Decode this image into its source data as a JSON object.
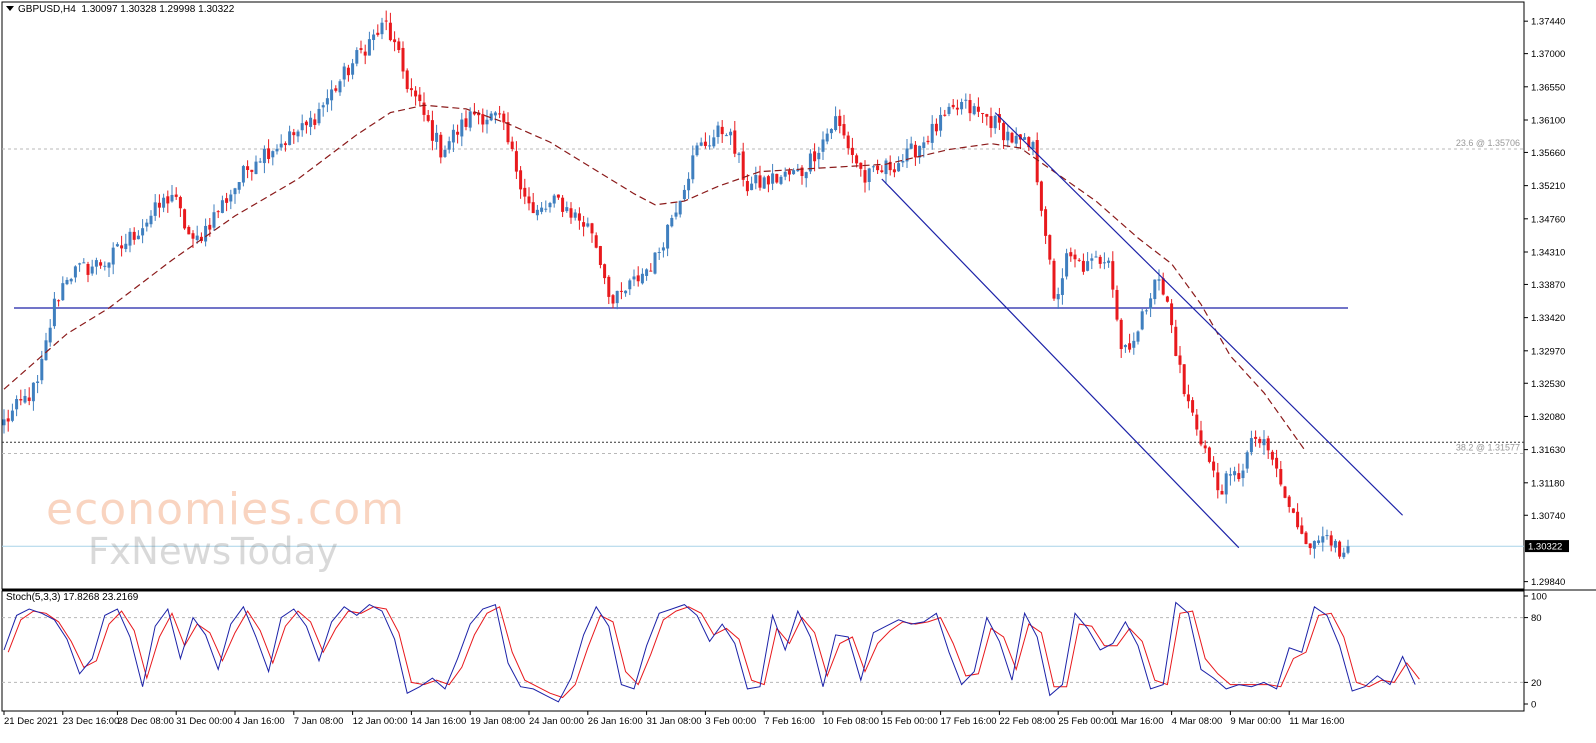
{
  "header": {
    "symbol": "GBPUSD,H4",
    "ohlc": "1.30097 1.30328 1.29998 1.30322"
  },
  "watermark": {
    "line1": "economies.com",
    "line2": "FxNewsToday"
  },
  "colors": {
    "bull": "#3f7fbf",
    "bear": "#e8191d",
    "ma": "#8b1a1a",
    "trend": "#1c22a8",
    "stoch_main": "#1c22a8",
    "stoch_signal": "#e8191d",
    "grid": "#b8b8b8"
  },
  "chart_data": [
    {
      "type": "candlestick",
      "symbol": "GBPUSD",
      "timeframe": "H4",
      "y_ticks": [
        "1.37440",
        "1.37000",
        "1.36550",
        "1.36100",
        "1.35660",
        "1.35210",
        "1.34760",
        "1.34310",
        "1.33870",
        "1.33420",
        "1.32970",
        "1.32530",
        "1.32080",
        "1.31630",
        "1.31180",
        "1.30740",
        "1.29840"
      ],
      "ylim": [
        1.2974,
        1.377
      ],
      "current_price_label": "1.30322",
      "current_price": 1.30322,
      "fib_levels": [
        {
          "label": "23.6 @ 1.35706",
          "value": 1.35706
        },
        {
          "label": "38.2 @ 1.31577",
          "value": 1.31577
        }
      ],
      "horizontal_lines": [
        1.3355,
        1.3173,
        1.3032
      ],
      "x_labels": [
        {
          "text": "21 Dec 2021",
          "idx": 0
        },
        {
          "text": "23 Dec 16:00",
          "idx": 14
        },
        {
          "text": "28 Dec 08:00",
          "idx": 27
        },
        {
          "text": "31 Dec 00:00",
          "idx": 41
        },
        {
          "text": "4 Jan 16:00",
          "idx": 55
        },
        {
          "text": "7 Jan 08:00",
          "idx": 69
        },
        {
          "text": "12 Jan 00:00",
          "idx": 83
        },
        {
          "text": "14 Jan 16:00",
          "idx": 97
        },
        {
          "text": "19 Jan 08:00",
          "idx": 111
        },
        {
          "text": "24 Jan 00:00",
          "idx": 125
        },
        {
          "text": "26 Jan 16:00",
          "idx": 139
        },
        {
          "text": "31 Jan 08:00",
          "idx": 153
        },
        {
          "text": "3 Feb 00:00",
          "idx": 167
        },
        {
          "text": "7 Feb 16:00",
          "idx": 181
        },
        {
          "text": "10 Feb 08:00",
          "idx": 195
        },
        {
          "text": "15 Feb 00:00",
          "idx": 209
        },
        {
          "text": "17 Feb 16:00",
          "idx": 223
        },
        {
          "text": "22 Feb 08:00",
          "idx": 237
        },
        {
          "text": "25 Feb 00:00",
          "idx": 251
        },
        {
          "text": "1 Mar 16:00",
          "idx": 264
        },
        {
          "text": "4 Mar 08:00",
          "idx": 278
        },
        {
          "text": "9 Mar 00:00",
          "idx": 292
        },
        {
          "text": "11 Mar 16:00",
          "idx": 306
        }
      ],
      "key_closes": [
        [
          0,
          1.32
        ],
        [
          8,
          1.325
        ],
        [
          12,
          1.336
        ],
        [
          15,
          1.34
        ],
        [
          25,
          1.342
        ],
        [
          40,
          1.351
        ],
        [
          45,
          1.344
        ],
        [
          60,
          1.356
        ],
        [
          72,
          1.36
        ],
        [
          86,
          1.371
        ],
        [
          91,
          1.374
        ],
        [
          96,
          1.366
        ],
        [
          104,
          1.357
        ],
        [
          112,
          1.362
        ],
        [
          118,
          1.361
        ],
        [
          126,
          1.348
        ],
        [
          132,
          1.35
        ],
        [
          140,
          1.346
        ],
        [
          145,
          1.336
        ],
        [
          155,
          1.342
        ],
        [
          165,
          1.357
        ],
        [
          172,
          1.36
        ],
        [
          177,
          1.352
        ],
        [
          190,
          1.354
        ],
        [
          198,
          1.361
        ],
        [
          205,
          1.353
        ],
        [
          215,
          1.356
        ],
        [
          222,
          1.36
        ],
        [
          228,
          1.363
        ],
        [
          235,
          1.361
        ],
        [
          241,
          1.358
        ],
        [
          245,
          1.357
        ],
        [
          248,
          1.346
        ],
        [
          250,
          1.336
        ],
        [
          253,
          1.342
        ],
        [
          258,
          1.341
        ],
        [
          263,
          1.343
        ],
        [
          266,
          1.33
        ],
        [
          270,
          1.332
        ],
        [
          274,
          1.34
        ],
        [
          277,
          1.336
        ],
        [
          281,
          1.324
        ],
        [
          285,
          1.318
        ],
        [
          289,
          1.311
        ],
        [
          294,
          1.313
        ],
        [
          298,
          1.318
        ],
        [
          302,
          1.315
        ],
        [
          306,
          1.308
        ],
        [
          312,
          1.303
        ],
        [
          315,
          1.306
        ],
        [
          318,
          1.301
        ],
        [
          320,
          1.3032
        ]
      ],
      "moving_average": {
        "style": "dashed",
        "points": [
          [
            0,
            1.3245
          ],
          [
            15,
            1.332
          ],
          [
            25,
            1.3355
          ],
          [
            40,
            1.342
          ],
          [
            55,
            1.348
          ],
          [
            70,
            1.353
          ],
          [
            84,
            1.359
          ],
          [
            92,
            1.362
          ],
          [
            100,
            1.363
          ],
          [
            110,
            1.3625
          ],
          [
            120,
            1.3605
          ],
          [
            130,
            1.358
          ],
          [
            140,
            1.3545
          ],
          [
            150,
            1.351
          ],
          [
            155,
            1.3495
          ],
          [
            162,
            1.35
          ],
          [
            170,
            1.352
          ],
          [
            180,
            1.354
          ],
          [
            195,
            1.3545
          ],
          [
            210,
            1.355
          ],
          [
            225,
            1.357
          ],
          [
            235,
            1.3578
          ],
          [
            242,
            1.3572
          ],
          [
            250,
            1.354
          ],
          [
            260,
            1.35
          ],
          [
            270,
            1.345
          ],
          [
            278,
            1.3415
          ],
          [
            285,
            1.336
          ],
          [
            292,
            1.329
          ],
          [
            300,
            1.324
          ],
          [
            310,
            1.316
          ]
        ]
      },
      "trend_channel": [
        {
          "from": [
            209,
            1.353
          ],
          "to": [
            294,
            1.303
          ]
        },
        {
          "from": [
            236,
            1.362
          ],
          "to": [
            333,
            1.3074
          ]
        }
      ]
    },
    {
      "type": "line",
      "indicator": "Stoch(5,3,3)",
      "header": "Stoch(5,3,3) 17.8268 23.2169",
      "main_value": 17.8268,
      "signal_value": 23.2169,
      "ylim": [
        0,
        100
      ],
      "y_ticks": [
        "100",
        "80",
        "20",
        "0"
      ],
      "levels": [
        80,
        20
      ],
      "main_points": [
        [
          0,
          50
        ],
        [
          3,
          82
        ],
        [
          6,
          88
        ],
        [
          9,
          84
        ],
        [
          12,
          78
        ],
        [
          15,
          60
        ],
        [
          18,
          28
        ],
        [
          21,
          42
        ],
        [
          24,
          82
        ],
        [
          27,
          88
        ],
        [
          30,
          62
        ],
        [
          33,
          16
        ],
        [
          36,
          72
        ],
        [
          39,
          88
        ],
        [
          42,
          42
        ],
        [
          45,
          80
        ],
        [
          48,
          64
        ],
        [
          51,
          32
        ],
        [
          54,
          74
        ],
        [
          57,
          90
        ],
        [
          60,
          62
        ],
        [
          63,
          30
        ],
        [
          66,
          80
        ],
        [
          69,
          88
        ],
        [
          72,
          72
        ],
        [
          75,
          40
        ],
        [
          78,
          76
        ],
        [
          81,
          90
        ],
        [
          84,
          82
        ],
        [
          87,
          92
        ],
        [
          90,
          86
        ],
        [
          93,
          60
        ],
        [
          96,
          10
        ],
        [
          99,
          16
        ],
        [
          102,
          24
        ],
        [
          105,
          14
        ],
        [
          108,
          42
        ],
        [
          111,
          74
        ],
        [
          114,
          88
        ],
        [
          117,
          92
        ],
        [
          120,
          38
        ],
        [
          123,
          16
        ],
        [
          126,
          14
        ],
        [
          129,
          8
        ],
        [
          132,
          2
        ],
        [
          135,
          24
        ],
        [
          138,
          64
        ],
        [
          141,
          90
        ],
        [
          144,
          72
        ],
        [
          147,
          18
        ],
        [
          150,
          14
        ],
        [
          153,
          54
        ],
        [
          156,
          84
        ],
        [
          159,
          88
        ],
        [
          162,
          92
        ],
        [
          165,
          82
        ],
        [
          168,
          58
        ],
        [
          171,
          74
        ],
        [
          174,
          56
        ],
        [
          177,
          14
        ],
        [
          180,
          16
        ],
        [
          183,
          82
        ],
        [
          186,
          50
        ],
        [
          189,
          86
        ],
        [
          192,
          62
        ],
        [
          195,
          16
        ],
        [
          198,
          64
        ],
        [
          201,
          62
        ],
        [
          204,
          22
        ],
        [
          207,
          66
        ],
        [
          210,
          72
        ],
        [
          213,
          78
        ],
        [
          216,
          74
        ],
        [
          219,
          76
        ],
        [
          222,
          84
        ],
        [
          225,
          48
        ],
        [
          228,
          18
        ],
        [
          231,
          30
        ],
        [
          234,
          80
        ],
        [
          237,
          58
        ],
        [
          240,
          22
        ],
        [
          243,
          84
        ],
        [
          246,
          62
        ],
        [
          249,
          8
        ],
        [
          252,
          18
        ],
        [
          255,
          84
        ],
        [
          258,
          70
        ],
        [
          261,
          50
        ],
        [
          264,
          56
        ],
        [
          267,
          76
        ],
        [
          270,
          54
        ],
        [
          273,
          14
        ],
        [
          276,
          18
        ],
        [
          279,
          94
        ],
        [
          282,
          84
        ],
        [
          285,
          32
        ],
        [
          288,
          24
        ],
        [
          291,
          14
        ],
        [
          294,
          18
        ],
        [
          297,
          16
        ],
        [
          300,
          20
        ],
        [
          303,
          14
        ],
        [
          306,
          52
        ],
        [
          309,
          48
        ],
        [
          312,
          90
        ],
        [
          315,
          82
        ],
        [
          318,
          54
        ],
        [
          321,
          12
        ],
        [
          324,
          16
        ],
        [
          327,
          26
        ],
        [
          330,
          18
        ],
        [
          333,
          44
        ],
        [
          336,
          18
        ]
      ],
      "signal_points": [
        [
          1,
          48
        ],
        [
          4,
          78
        ],
        [
          7,
          86
        ],
        [
          10,
          84
        ],
        [
          13,
          76
        ],
        [
          16,
          58
        ],
        [
          19,
          34
        ],
        [
          22,
          40
        ],
        [
          25,
          74
        ],
        [
          28,
          86
        ],
        [
          31,
          68
        ],
        [
          34,
          24
        ],
        [
          37,
          62
        ],
        [
          40,
          84
        ],
        [
          43,
          54
        ],
        [
          46,
          74
        ],
        [
          49,
          66
        ],
        [
          52,
          40
        ],
        [
          55,
          66
        ],
        [
          58,
          86
        ],
        [
          61,
          68
        ],
        [
          64,
          38
        ],
        [
          67,
          72
        ],
        [
          70,
          86
        ],
        [
          73,
          76
        ],
        [
          76,
          48
        ],
        [
          79,
          70
        ],
        [
          82,
          86
        ],
        [
          85,
          84
        ],
        [
          88,
          90
        ],
        [
          91,
          88
        ],
        [
          94,
          66
        ],
        [
          97,
          20
        ],
        [
          100,
          18
        ],
        [
          103,
          22
        ],
        [
          106,
          18
        ],
        [
          109,
          34
        ],
        [
          112,
          64
        ],
        [
          115,
          84
        ],
        [
          118,
          90
        ],
        [
          121,
          48
        ],
        [
          124,
          22
        ],
        [
          127,
          16
        ],
        [
          130,
          10
        ],
        [
          133,
          6
        ],
        [
          136,
          18
        ],
        [
          139,
          52
        ],
        [
          142,
          82
        ],
        [
          145,
          76
        ],
        [
          148,
          30
        ],
        [
          151,
          18
        ],
        [
          154,
          46
        ],
        [
          157,
          78
        ],
        [
          160,
          86
        ],
        [
          163,
          90
        ],
        [
          166,
          84
        ],
        [
          169,
          64
        ],
        [
          172,
          70
        ],
        [
          175,
          60
        ],
        [
          178,
          22
        ],
        [
          181,
          18
        ],
        [
          184,
          70
        ],
        [
          187,
          56
        ],
        [
          190,
          80
        ],
        [
          193,
          66
        ],
        [
          196,
          26
        ],
        [
          199,
          56
        ],
        [
          202,
          62
        ],
        [
          205,
          30
        ],
        [
          208,
          56
        ],
        [
          211,
          68
        ],
        [
          214,
          76
        ],
        [
          217,
          74
        ],
        [
          220,
          76
        ],
        [
          223,
          80
        ],
        [
          226,
          56
        ],
        [
          229,
          26
        ],
        [
          232,
          28
        ],
        [
          235,
          70
        ],
        [
          238,
          62
        ],
        [
          241,
          32
        ],
        [
          244,
          74
        ],
        [
          247,
          66
        ],
        [
          250,
          16
        ],
        [
          253,
          16
        ],
        [
          256,
          74
        ],
        [
          259,
          72
        ],
        [
          262,
          54
        ],
        [
          265,
          54
        ],
        [
          268,
          70
        ],
        [
          271,
          58
        ],
        [
          274,
          22
        ],
        [
          277,
          18
        ],
        [
          280,
          84
        ],
        [
          283,
          86
        ],
        [
          286,
          42
        ],
        [
          289,
          28
        ],
        [
          292,
          18
        ],
        [
          295,
          18
        ],
        [
          298,
          18
        ],
        [
          301,
          18
        ],
        [
          304,
          16
        ],
        [
          307,
          42
        ],
        [
          310,
          48
        ],
        [
          313,
          82
        ],
        [
          316,
          84
        ],
        [
          319,
          62
        ],
        [
          322,
          20
        ],
        [
          325,
          16
        ],
        [
          328,
          22
        ],
        [
          331,
          20
        ],
        [
          334,
          38
        ],
        [
          337,
          23
        ]
      ]
    }
  ]
}
